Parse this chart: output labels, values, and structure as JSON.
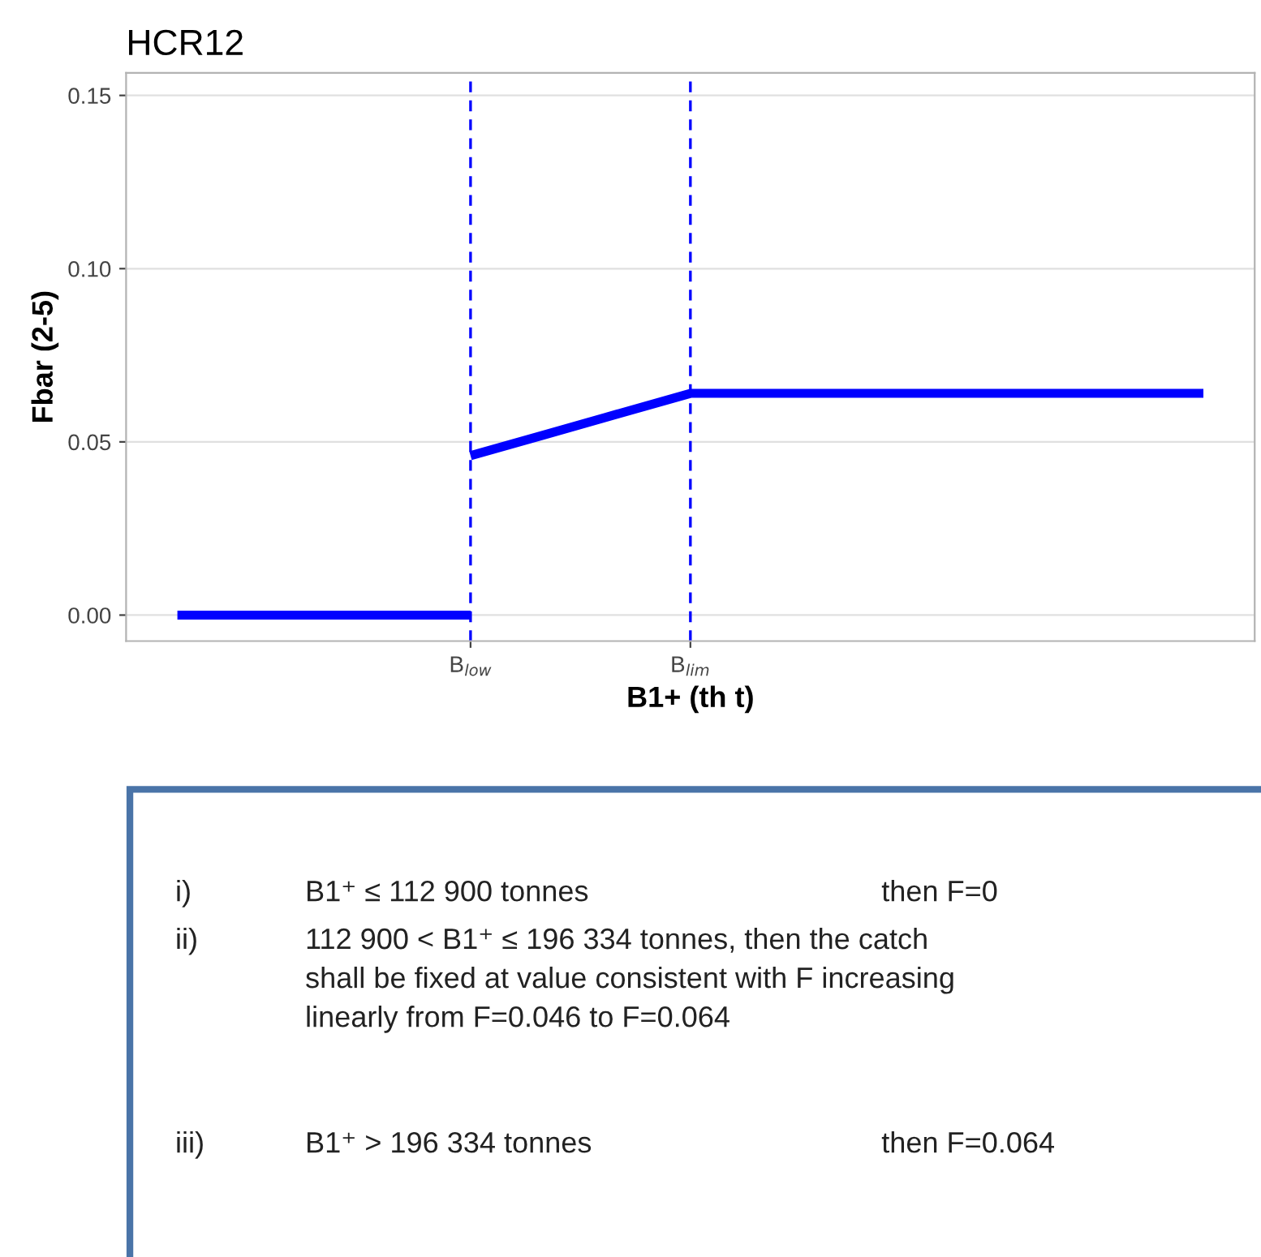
{
  "chart_data": {
    "type": "line",
    "title": "HCR12",
    "xlabel": "B1+ (th t)",
    "ylabel": "Fbar (2-5)",
    "categories": [
      null,
      null,
      null,
      null,
      "B$_{low}$",
      null,
      null,
      "B$_{lim}$",
      null,
      null,
      null,
      null,
      null,
      null,
      null
    ],
    "series": [
      {
        "color": "#0000ff",
        "values": [
          0,
          0,
          0,
          0,
          0,
          null,
          null,
          null,
          null,
          null,
          null,
          null,
          null,
          null,
          null
        ]
      },
      {
        "color": "#0000ff",
        "values": [
          null,
          null,
          null,
          null,
          0.046,
          0.052,
          0.058,
          0.064,
          0.064,
          0.064,
          0.064,
          0.064,
          0.064,
          0.064,
          0.064
        ]
      }
    ],
    "ylim": [
      -0.0075,
      0.1565
    ],
    "yticks": [
      {
        "value": 0,
        "label": "0.00"
      },
      {
        "value": 0.05,
        "label": "0.05"
      },
      {
        "value": 0.1,
        "label": "0.10"
      },
      {
        "value": 0.15,
        "label": "0.15"
      }
    ],
    "grid": "y",
    "line_style": "solid",
    "marker": "none",
    "ref_lines": [
      {
        "axis": "x",
        "value": "B$_{low}$",
        "color": "#0000ff",
        "line_style": "dashed"
      },
      {
        "axis": "x",
        "value": "B$_{lim}$",
        "color": "#0000ff",
        "line_style": "dashed"
      }
    ],
    "annotations": [
      "i)",
      "B1⁺ ≤ 112 900 tonnes",
      "then F=0",
      "ii)",
      "112 900 < B1⁺ ≤ 196 334 tonnes, then the catch\nshall be fixed at value consistent with F increasing\nlinearly from F=0.046 to F=0.064",
      "iii)",
      "B1⁺ > 196 334 tonnes",
      "then F=0.064"
    ]
  }
}
